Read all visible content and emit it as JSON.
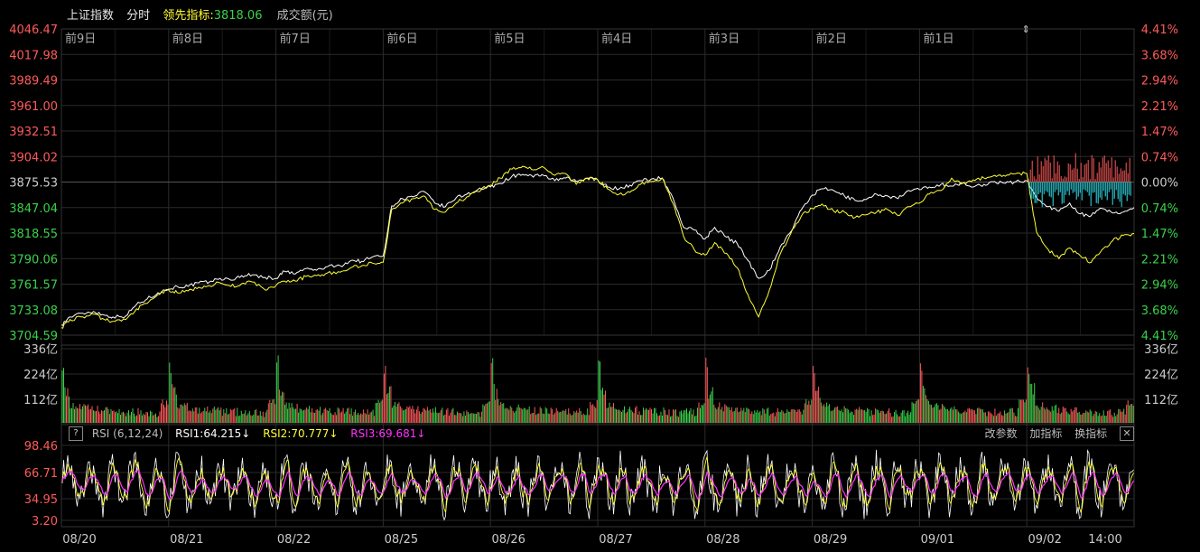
{
  "header": {
    "index_name": "上证指数",
    "mode": "分时",
    "leading_label": "领先指标:",
    "leading_value": "3818.06",
    "volume_label": "成交额(元)"
  },
  "colors": {
    "background": "#000000",
    "grid": "#2a2a2a",
    "price_line": "#ffffff",
    "leading_line": "#ffff33",
    "up": "#ff5a5a",
    "down": "#3ad14a",
    "cyan": "#33e6f0",
    "rsi1": "#ffffff",
    "rsi2": "#ffff33",
    "rsi3": "#ff33ff"
  },
  "rsi": {
    "help_label": "?",
    "params": "RSI (6,12,24)",
    "rsi1": "RSI1:64.215↓",
    "rsi2": "RSI2:70.777↓",
    "rsi3": "RSI3:69.681↓",
    "tools": [
      "改参数",
      "加指标",
      "换指标"
    ],
    "close_icon": "✕"
  },
  "chart_data": {
    "type": "line",
    "day_labels_top": [
      "前9日",
      "前8日",
      "前7日",
      "前6日",
      "前5日",
      "前4日",
      "前3日",
      "前2日",
      "前1日"
    ],
    "dates": [
      "08/20",
      "08/21",
      "08/22",
      "08/25",
      "08/26",
      "08/27",
      "08/28",
      "08/29",
      "09/01",
      "09/02"
    ],
    "time_label": "14:00",
    "price_axis": {
      "ticks": [
        "4046.47",
        "4017.98",
        "3989.49",
        "3961.00",
        "3932.51",
        "3904.02",
        "3875.53",
        "3847.04",
        "3818.55",
        "3790.06",
        "3761.57",
        "3733.08",
        "3704.59"
      ],
      "ylim": [
        3704.59,
        4046.47
      ],
      "pct_ticks": [
        "4.41%",
        "3.68%",
        "2.94%",
        "2.21%",
        "1.47%",
        "0.74%",
        "0.00%",
        "0.74%",
        "1.47%",
        "2.21%",
        "2.94%",
        "3.68%",
        "4.41%"
      ]
    },
    "volume_axis": {
      "ticks": [
        "336亿",
        "224亿",
        "112亿"
      ],
      "ylim": [
        0,
        336
      ]
    },
    "rsi_axis": {
      "ticks": [
        "98.46",
        "66.71",
        "34.95",
        "3.20"
      ],
      "ylim": [
        3.2,
        98.46
      ]
    },
    "series": [
      {
        "name": "上证指数",
        "x": [
          0,
          8,
          20,
          30,
          40,
          48,
          60,
          70,
          80,
          90,
          100,
          108,
          118,
          128,
          138,
          148,
          158,
          168,
          178,
          190,
          200,
          208,
          218,
          228,
          238,
          248,
          260,
          270,
          280,
          290,
          300,
          308,
          318,
          328,
          338,
          348,
          358,
          368,
          378,
          388,
          400,
          409,
          420,
          430,
          440,
          448,
          460,
          470,
          480,
          490,
          500,
          509,
          520,
          530,
          540,
          550,
          560,
          570,
          580,
          590,
          600,
          609,
          620,
          630,
          640,
          650,
          660,
          670,
          680,
          690,
          700,
          709,
          720,
          730,
          740,
          750,
          760,
          770,
          780,
          790,
          800,
          809,
          820,
          830,
          840,
          850,
          860,
          870,
          880,
          890,
          900,
          909,
          920,
          930,
          940,
          950,
          960,
          970,
          980,
          990,
          1000
        ],
        "values": [
          3716,
          3725,
          3729,
          3731,
          3727,
          3725,
          3726,
          3739,
          3745,
          3752,
          3756,
          3759,
          3759,
          3763,
          3764,
          3768,
          3766,
          3771,
          3772,
          3769,
          3768,
          3776,
          3773,
          3779,
          3777,
          3781,
          3782,
          3788,
          3787,
          3792,
          3793,
          3849,
          3857,
          3859,
          3865,
          3852,
          3848,
          3858,
          3862,
          3867,
          3870,
          3874,
          3882,
          3884,
          3881,
          3884,
          3877,
          3880,
          3876,
          3880,
          3878,
          3870,
          3868,
          3872,
          3877,
          3879,
          3880,
          3858,
          3825,
          3822,
          3812,
          3825,
          3814,
          3807,
          3788,
          3768,
          3777,
          3803,
          3820,
          3845,
          3861,
          3868,
          3866,
          3860,
          3855,
          3856,
          3862,
          3860,
          3857,
          3866,
          3867,
          3870,
          3873,
          3871,
          3874,
          3870,
          3873,
          3876,
          3874,
          3876,
          3877,
          3858,
          3848,
          3843,
          3852,
          3840,
          3838,
          3846,
          3841,
          3842,
          3847
        ]
      },
      {
        "name": "领先指标",
        "x": [
          0,
          8,
          20,
          30,
          40,
          48,
          60,
          70,
          80,
          90,
          100,
          108,
          118,
          128,
          138,
          148,
          158,
          168,
          178,
          190,
          200,
          208,
          218,
          228,
          238,
          248,
          260,
          270,
          280,
          290,
          300,
          308,
          318,
          328,
          338,
          348,
          358,
          368,
          378,
          388,
          400,
          409,
          420,
          430,
          440,
          448,
          460,
          470,
          480,
          490,
          500,
          509,
          520,
          530,
          540,
          550,
          560,
          570,
          580,
          590,
          600,
          609,
          620,
          630,
          640,
          650,
          660,
          670,
          680,
          690,
          700,
          709,
          720,
          730,
          740,
          750,
          760,
          770,
          780,
          790,
          800,
          809,
          820,
          830,
          840,
          850,
          860,
          870,
          880,
          890,
          900,
          909,
          920,
          930,
          940,
          950,
          960,
          970,
          980,
          990,
          1000
        ],
        "values": [
          3713,
          3722,
          3725,
          3728,
          3722,
          3720,
          3722,
          3734,
          3740,
          3750,
          3755,
          3752,
          3754,
          3758,
          3760,
          3763,
          3759,
          3762,
          3764,
          3755,
          3760,
          3765,
          3765,
          3770,
          3771,
          3774,
          3775,
          3780,
          3782,
          3785,
          3786,
          3845,
          3852,
          3857,
          3860,
          3845,
          3842,
          3852,
          3859,
          3865,
          3872,
          3880,
          3890,
          3893,
          3889,
          3893,
          3883,
          3885,
          3873,
          3880,
          3878,
          3868,
          3862,
          3864,
          3873,
          3876,
          3880,
          3852,
          3815,
          3800,
          3794,
          3808,
          3796,
          3780,
          3750,
          3725,
          3755,
          3795,
          3818,
          3838,
          3846,
          3851,
          3843,
          3842,
          3836,
          3839,
          3842,
          3845,
          3838,
          3848,
          3852,
          3862,
          3866,
          3880,
          3874,
          3878,
          3880,
          3883,
          3882,
          3885,
          3885,
          3820,
          3800,
          3790,
          3802,
          3793,
          3786,
          3800,
          3810,
          3816,
          3818
        ]
      }
    ]
  }
}
